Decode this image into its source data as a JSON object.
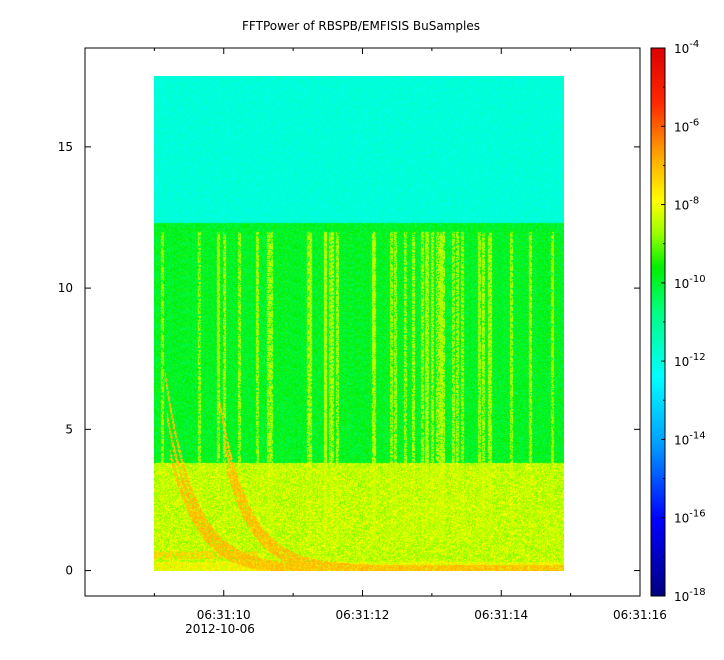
{
  "chart_data": {
    "type": "heatmap",
    "title": "FFTPower of RBSPB/EMFISIS  BuSamples",
    "xlabel": "",
    "ylabel": "",
    "date_label": "2012-10-06",
    "x_ticks": [
      "06:31:10",
      "06:31:12",
      "06:31:14",
      "06:31:16"
    ],
    "x_range_seconds": [
      8.0,
      16.0
    ],
    "data_time_range_seconds": [
      9.0,
      14.9
    ],
    "y_ticks": [
      0,
      5,
      10,
      15
    ],
    "y_range": [
      -0.9,
      18.5
    ],
    "data_freq_range": [
      0,
      17.5
    ],
    "colorbar": {
      "scale": "log",
      "range": [
        "1e-18",
        "1e-4"
      ],
      "tick_mantissa": "10",
      "tick_exponents": [
        "-18",
        "-16",
        "-14",
        "-12",
        "-10",
        "-8",
        "-6",
        "-4"
      ],
      "colormap": [
        "#000080",
        "#0000ff",
        "#00a0ff",
        "#00ffff",
        "#00ff80",
        "#00ff00",
        "#a0ff00",
        "#ffff00",
        "#ffa000",
        "#ff0000",
        "#e00000"
      ]
    },
    "features": {
      "upper_band_level": "1e-12",
      "upper_band_freq_range": [
        12.3,
        17.5
      ],
      "middle_band_level": "1e-10",
      "middle_band_freq_range": [
        3.8,
        12.3
      ],
      "lower_band_level": "1e-8",
      "lower_band_freq_range": [
        0,
        3.8
      ]
    }
  }
}
